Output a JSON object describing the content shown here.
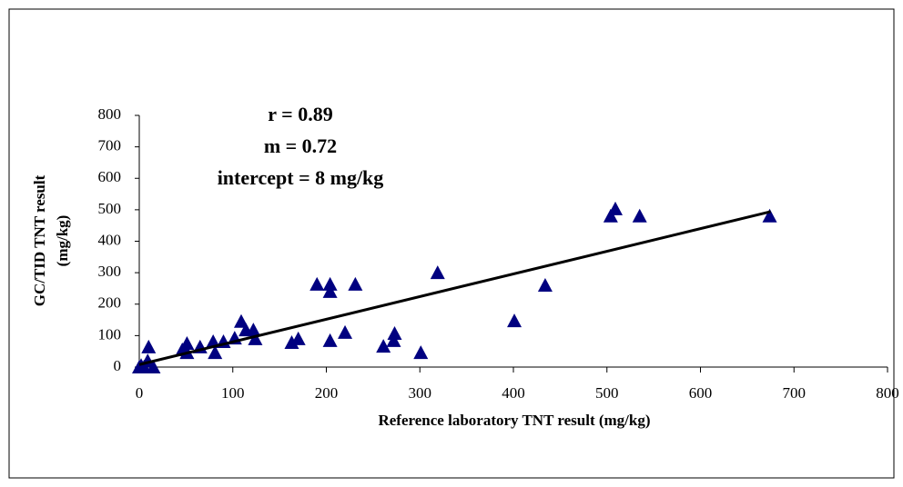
{
  "chart_data": {
    "type": "scatter",
    "annotations": [
      "r = 0.89",
      "m = 0.72",
      "intercept = 8 mg/kg"
    ],
    "x_label": "Reference laboratory TNT result (mg/kg)",
    "y_label": [
      "GC/TID TNT result",
      "(mg/kg)"
    ],
    "x": [
      0,
      2,
      5,
      9,
      10,
      15,
      46,
      51,
      51,
      65,
      79,
      81,
      90,
      102,
      109,
      114,
      122,
      124,
      163,
      170,
      190,
      204,
      204,
      204,
      220,
      231,
      261,
      272,
      273,
      301,
      319,
      401,
      434,
      504,
      509,
      535,
      674
    ],
    "values": [
      0,
      5,
      0,
      20,
      64,
      0,
      55,
      75,
      46,
      64,
      81,
      46,
      81,
      92,
      145,
      118,
      118,
      90,
      78,
      90,
      263,
      263,
      240,
      84,
      110,
      263,
      66,
      84,
      107,
      46,
      300,
      147,
      260,
      480,
      503,
      480,
      480
    ],
    "color": "#000080",
    "fit_line": {
      "x": [
        0,
        675
      ],
      "values": [
        8,
        494
      ],
      "color": "#000000"
    },
    "xlim": [
      0,
      800
    ],
    "xticks": [
      0,
      100,
      200,
      300,
      400,
      500,
      600,
      700,
      800
    ],
    "ylim": [
      0,
      800
    ],
    "yticks": [
      0,
      100,
      200,
      300,
      400,
      500,
      600,
      700,
      800
    ]
  }
}
